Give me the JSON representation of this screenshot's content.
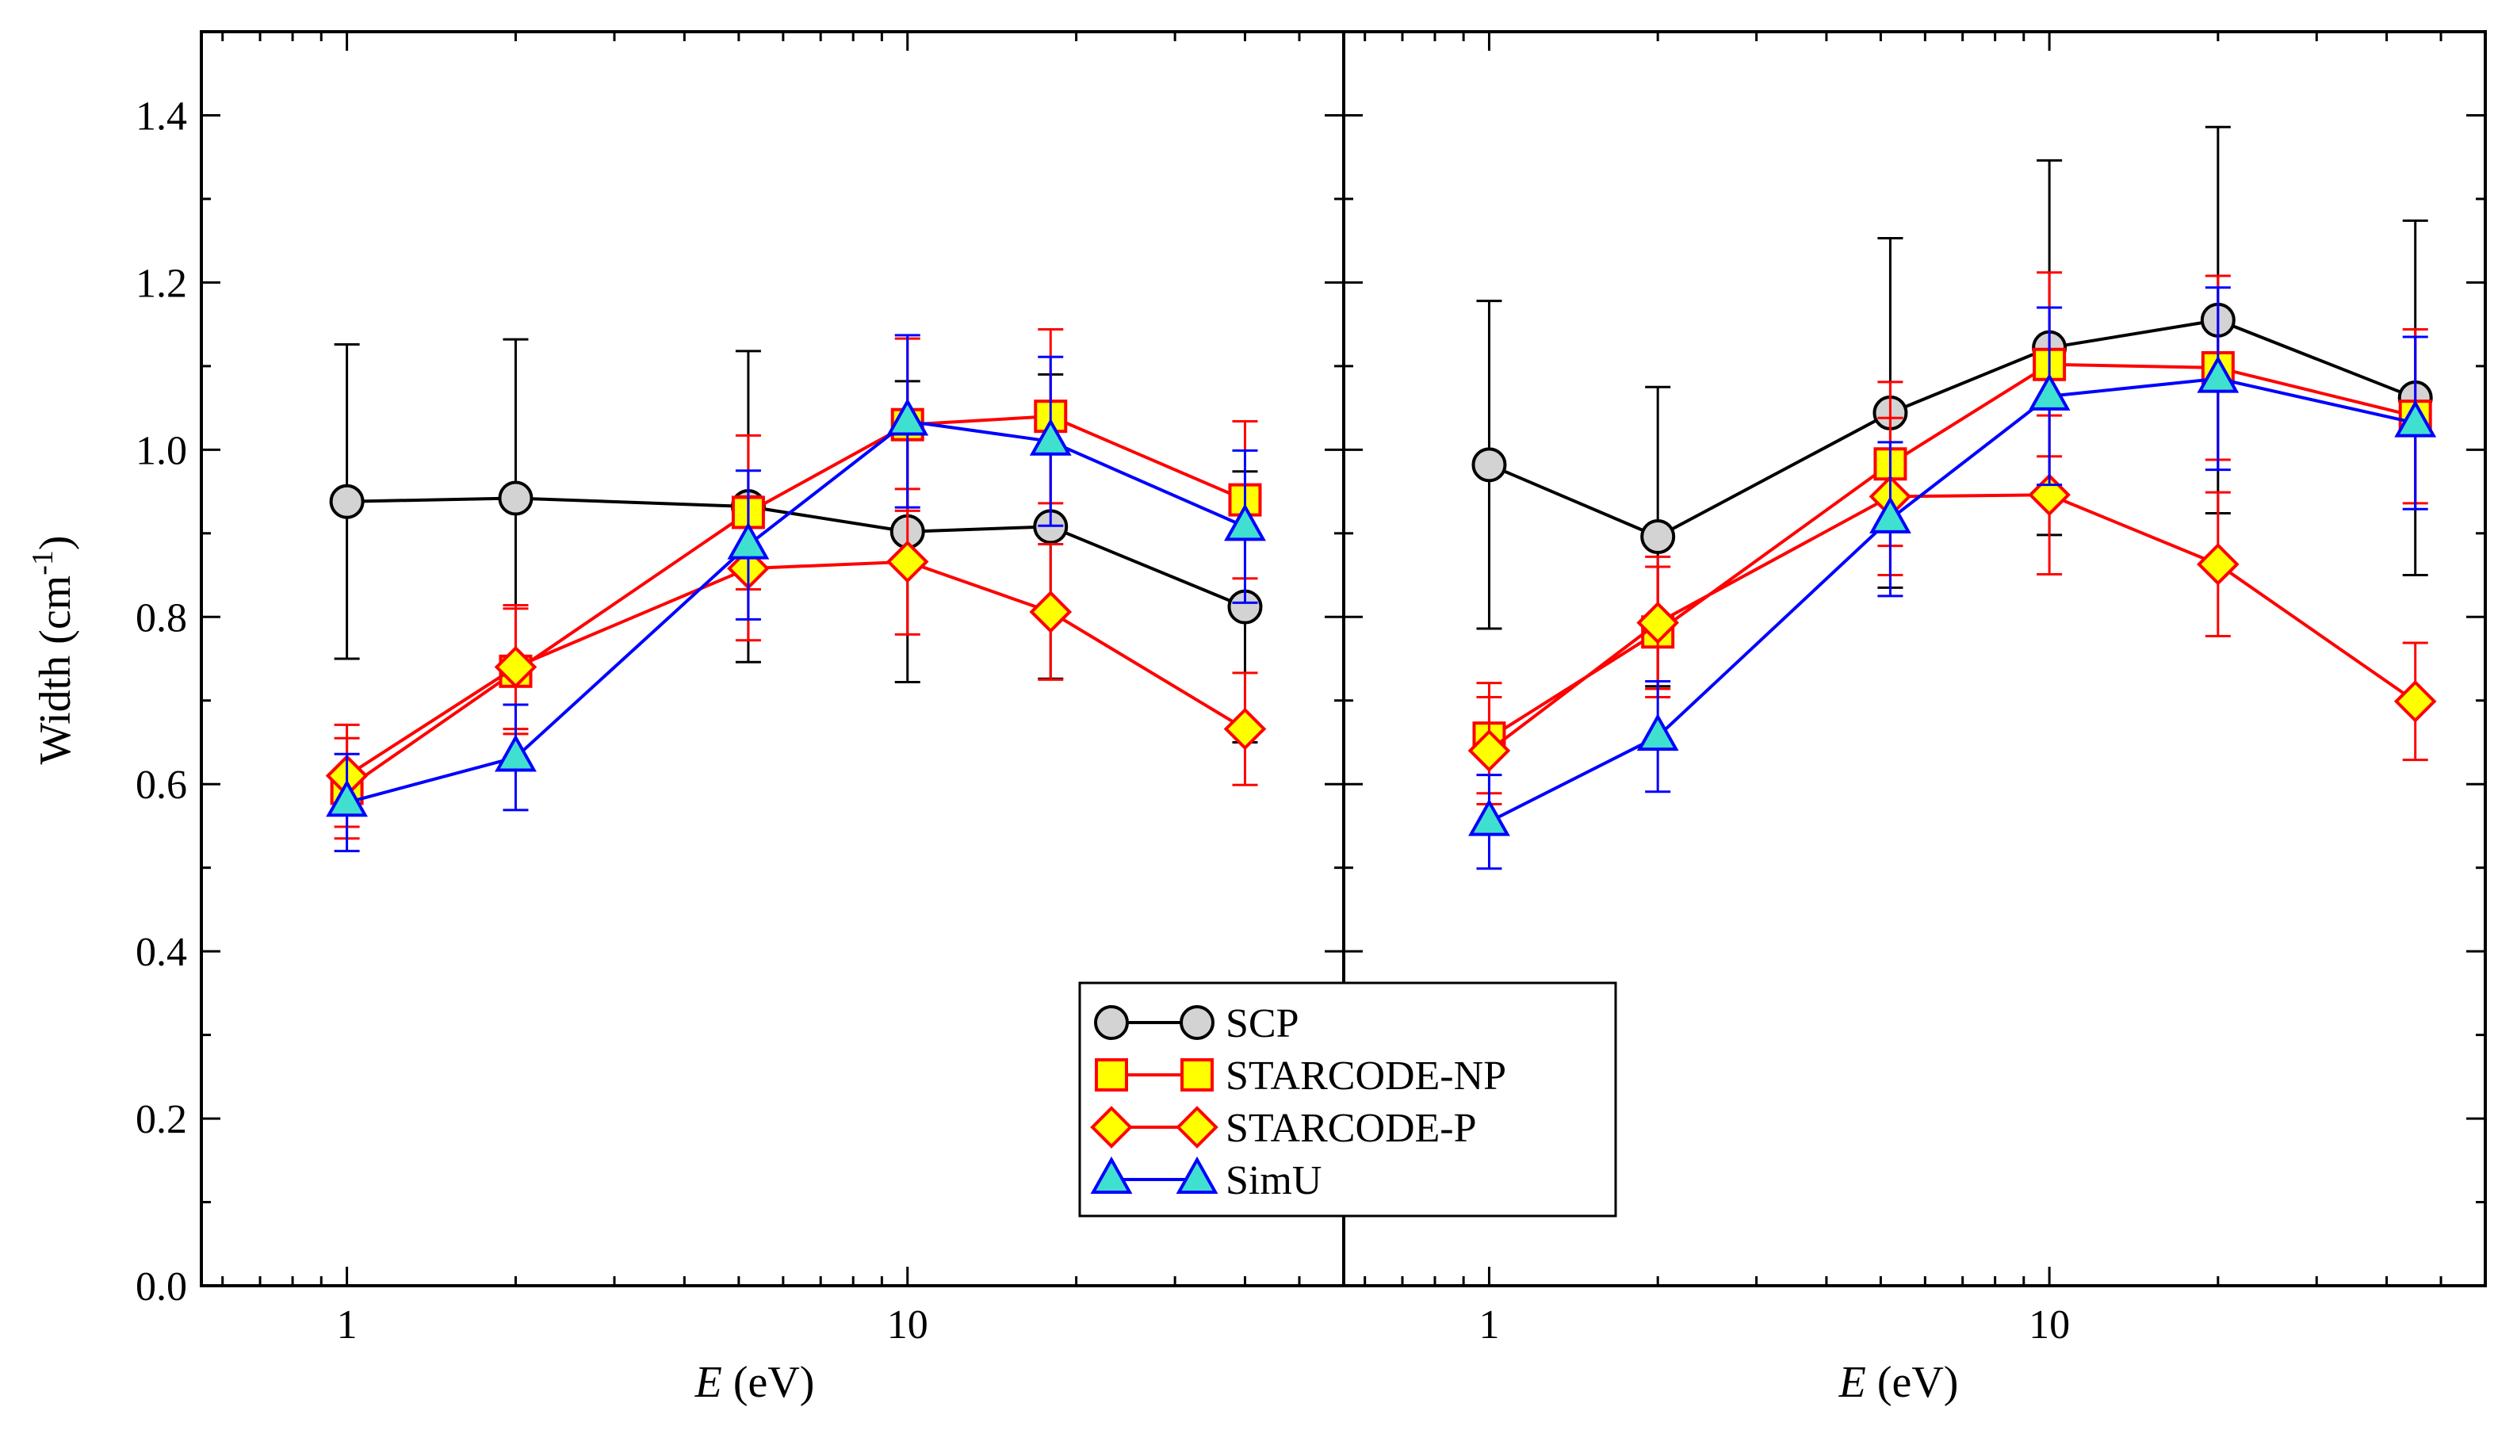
{
  "chart_data": [
    {
      "type": "line",
      "xscale": "log",
      "xlim": [
        0.55,
        60
      ],
      "ylim": [
        0.0,
        1.5
      ],
      "xticks": [
        1,
        10
      ],
      "xtick_labels": [
        "1",
        "10"
      ],
      "yticks": [
        0.0,
        0.2,
        0.4,
        0.6,
        0.8,
        1.0,
        1.2,
        1.4
      ],
      "ytick_labels": [
        "0.0",
        "0.2",
        "0.4",
        "0.6",
        "0.8",
        "1.0",
        "1.2",
        "1.4"
      ],
      "xlabel_italic": "E",
      "xlabel_rest": " (eV)",
      "ylabel": "Width (cm",
      "ylabel_sup": "-1",
      "ylabel_close": ")",
      "series": [
        {
          "name": "SCP",
          "marker": "circle",
          "line_color": "#000000",
          "fill": "#d3d3d3",
          "stroke": "#000000",
          "x": [
            1,
            2,
            5.2,
            10,
            18,
            40
          ],
          "y": [
            0.938,
            0.942,
            0.932,
            0.902,
            0.908,
            0.812
          ],
          "err": [
            0.188,
            0.19,
            0.186,
            0.18,
            0.182,
            0.162
          ]
        },
        {
          "name": "STARCODE-NP",
          "marker": "square",
          "line_color": "#ff0000",
          "fill": "#ffff00",
          "stroke": "#ff0000",
          "x": [
            1,
            2,
            5.2,
            10,
            18,
            40
          ],
          "y": [
            0.595,
            0.735,
            0.925,
            1.03,
            1.04,
            0.94
          ],
          "err": [
            0.06,
            0.075,
            0.092,
            0.103,
            0.104,
            0.094
          ]
        },
        {
          "name": "STARCODE-P",
          "marker": "diamond",
          "line_color": "#ff0000",
          "fill": "#ffff00",
          "stroke": "#ff0000",
          "x": [
            1,
            2,
            5.2,
            10,
            18,
            40
          ],
          "y": [
            0.61,
            0.74,
            0.858,
            0.866,
            0.806,
            0.666
          ],
          "err": [
            0.061,
            0.074,
            0.086,
            0.087,
            0.081,
            0.067
          ]
        },
        {
          "name": "SimU",
          "marker": "triangle",
          "line_color": "#0000ff",
          "fill": "#40e0d0",
          "stroke": "#0000ff",
          "x": [
            1,
            2,
            5.2,
            10,
            18,
            40
          ],
          "y": [
            0.578,
            0.632,
            0.886,
            1.034,
            1.01,
            0.908
          ],
          "err": [
            0.058,
            0.063,
            0.089,
            0.103,
            0.101,
            0.091
          ]
        }
      ]
    },
    {
      "type": "line",
      "xscale": "log",
      "xlim": [
        0.55,
        60
      ],
      "ylim": [
        0.0,
        1.5
      ],
      "xticks": [
        1,
        10
      ],
      "xtick_labels": [
        "1",
        "10"
      ],
      "xlabel_italic": "E",
      "xlabel_rest": " (eV)",
      "series": [
        {
          "name": "SCP",
          "marker": "circle",
          "line_color": "#000000",
          "fill": "#d3d3d3",
          "stroke": "#000000",
          "x": [
            1,
            2,
            5.2,
            10,
            20,
            45
          ],
          "y": [
            0.982,
            0.896,
            1.044,
            1.122,
            1.155,
            1.062
          ],
          "err": [
            0.196,
            0.179,
            0.209,
            0.224,
            0.231,
            0.212
          ]
        },
        {
          "name": "STARCODE-NP",
          "marker": "square",
          "line_color": "#ff0000",
          "fill": "#ffff00",
          "stroke": "#ff0000",
          "x": [
            1,
            2,
            5.2,
            10,
            20,
            45
          ],
          "y": [
            0.655,
            0.782,
            0.983,
            1.102,
            1.098,
            1.04
          ],
          "err": [
            0.066,
            0.078,
            0.098,
            0.11,
            0.11,
            0.104
          ]
        },
        {
          "name": "STARCODE-P",
          "marker": "diamond",
          "line_color": "#ff0000",
          "fill": "#ffff00",
          "stroke": "#ff0000",
          "x": [
            1,
            2,
            5.2,
            10,
            20,
            45
          ],
          "y": [
            0.64,
            0.793,
            0.944,
            0.946,
            0.863,
            0.699
          ],
          "err": [
            0.064,
            0.079,
            0.094,
            0.095,
            0.086,
            0.07
          ]
        },
        {
          "name": "SimU",
          "marker": "triangle",
          "line_color": "#0000ff",
          "fill": "#40e0d0",
          "stroke": "#0000ff",
          "x": [
            1,
            2,
            5.2,
            10,
            20,
            45
          ],
          "y": [
            0.555,
            0.657,
            0.917,
            1.064,
            1.085,
            1.032
          ],
          "err": [
            0.056,
            0.066,
            0.092,
            0.106,
            0.109,
            0.103
          ]
        }
      ]
    }
  ],
  "legend": {
    "placement": "bottom-center",
    "items": [
      {
        "label": "SCP",
        "marker": "circle",
        "line_color": "#000000",
        "fill": "#d3d3d3",
        "stroke": "#000000"
      },
      {
        "label": "STARCODE-NP",
        "marker": "square",
        "line_color": "#ff0000",
        "fill": "#ffff00",
        "stroke": "#ff0000"
      },
      {
        "label": "STARCODE-P",
        "marker": "diamond",
        "line_color": "#ff0000",
        "fill": "#ffff00",
        "stroke": "#ff0000"
      },
      {
        "label": "SimU",
        "marker": "triangle",
        "line_color": "#0000ff",
        "fill": "#40e0d0",
        "stroke": "#0000ff"
      }
    ]
  }
}
